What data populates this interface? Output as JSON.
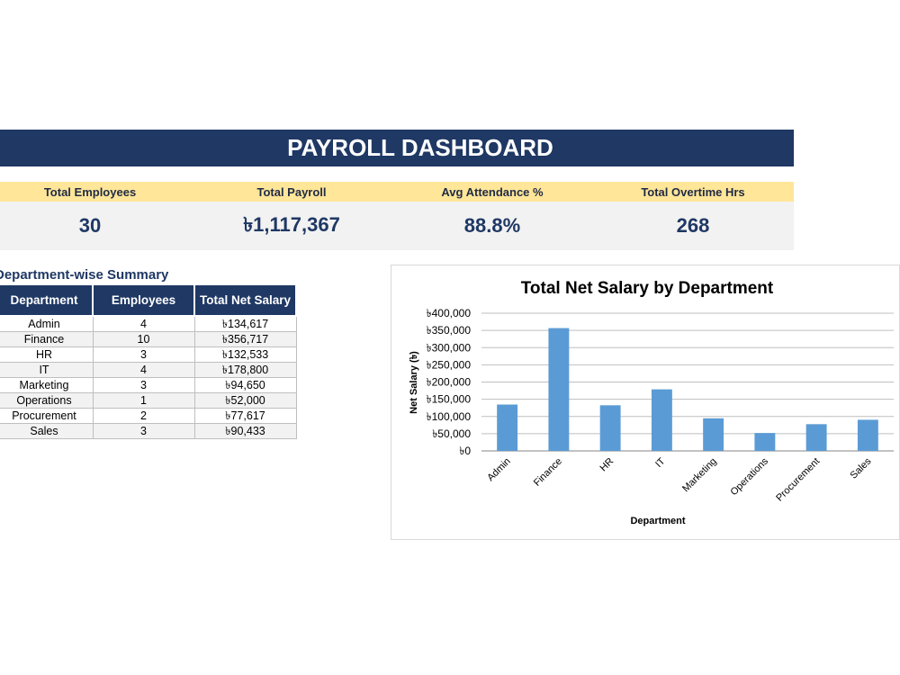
{
  "dashboard": {
    "title": "PAYROLL DASHBOARD",
    "kpis": [
      {
        "label": "Total Employees",
        "value": "30"
      },
      {
        "label": "Total Payroll",
        "value": "৳1,117,367"
      },
      {
        "label": "Avg Attendance %",
        "value": "88.8%"
      },
      {
        "label": "Total Overtime Hrs",
        "value": "268"
      }
    ]
  },
  "summary": {
    "heading": "Department-wise Summary",
    "headers": [
      "Department",
      "Employees",
      "Total Net Salary"
    ],
    "rows": [
      {
        "department": "Admin",
        "employees": "4",
        "net_salary": "৳134,617"
      },
      {
        "department": "Finance",
        "employees": "10",
        "net_salary": "৳356,717"
      },
      {
        "department": "HR",
        "employees": "3",
        "net_salary": "৳132,533"
      },
      {
        "department": "IT",
        "employees": "4",
        "net_salary": "৳178,800"
      },
      {
        "department": "Marketing",
        "employees": "3",
        "net_salary": "৳94,650"
      },
      {
        "department": "Operations",
        "employees": "1",
        "net_salary": "৳52,000"
      },
      {
        "department": "Procurement",
        "employees": "2",
        "net_salary": "৳77,617"
      },
      {
        "department": "Sales",
        "employees": "3",
        "net_salary": "৳90,433"
      }
    ]
  },
  "chart_data": {
    "type": "bar",
    "title": "Total Net Salary by Department",
    "xlabel": "Department",
    "ylabel": "Net Salary (৳)",
    "categories": [
      "Admin",
      "Finance",
      "HR",
      "IT",
      "Marketing",
      "Operations",
      "Procurement",
      "Sales"
    ],
    "values": [
      134617,
      356717,
      132533,
      178800,
      94650,
      52000,
      77617,
      90433
    ],
    "ylim": [
      0,
      400000
    ],
    "yticks": [
      "৳0",
      "৳50,000",
      "৳100,000",
      "৳150,000",
      "৳200,000",
      "৳250,000",
      "৳300,000",
      "৳350,000",
      "৳400,000"
    ],
    "bar_color": "#5b9bd5",
    "grid": true,
    "legend": "none"
  },
  "colors": {
    "navy": "#1f3864",
    "kpi_label_bg": "#ffe699",
    "kpi_value_bg": "#f2f2f2"
  }
}
